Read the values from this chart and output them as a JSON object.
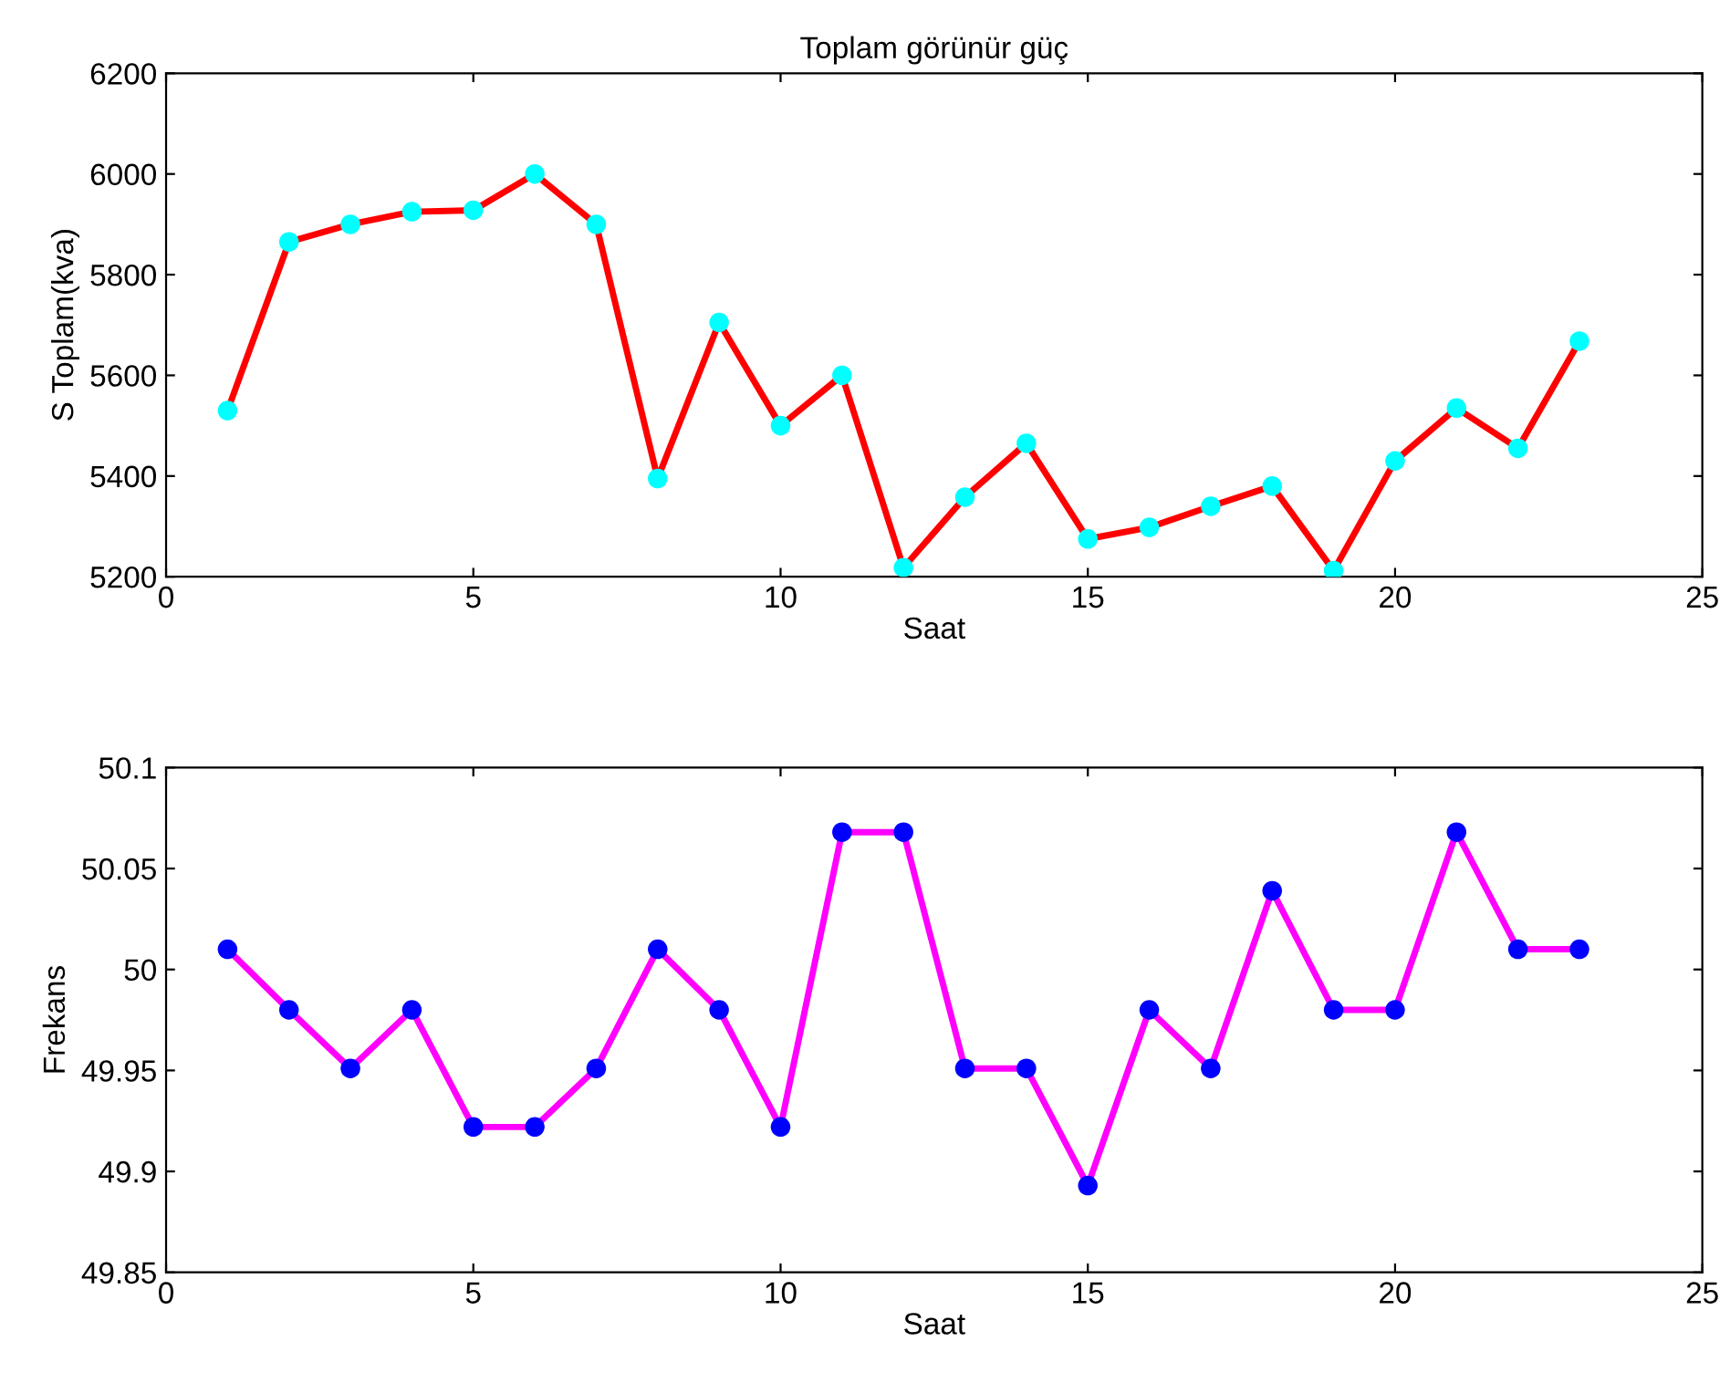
{
  "chart_data": [
    {
      "type": "line",
      "title": "Toplam görünür güç",
      "xlabel": "Saat",
      "ylabel": "S Toplam(kva)",
      "x": [
        1,
        2,
        3,
        4,
        5,
        6,
        7,
        8,
        9,
        10,
        11,
        12,
        13,
        14,
        15,
        16,
        17,
        18,
        19,
        20,
        21,
        22,
        23
      ],
      "series": [
        {
          "color": "#ff0000",
          "colors": [
            "#00ffff",
            "#00ffff",
            "#00ffff",
            "#00ffff",
            "#00ffff",
            "#00ffff",
            "#00ffff",
            "#00ffff",
            "#00ffff",
            "#00ffff",
            "#00ffff",
            "#00ffff",
            "#00ffff",
            "#00ffff",
            "#00ffff",
            "#00ffff",
            "#00ffff",
            "#00ffff",
            "#00ffff",
            "#00ffff",
            "#00ffff",
            "#00ffff",
            "#00ffff"
          ],
          "values": [
            5530,
            5865,
            5900,
            5925,
            5928,
            6000,
            5900,
            5395,
            5705,
            5500,
            5600,
            5218,
            5358,
            5465,
            5275,
            5298,
            5340,
            5380,
            5212,
            5430,
            5535,
            5455,
            5668
          ]
        }
      ],
      "xlim": [
        0,
        25
      ],
      "xticks": [
        0,
        5,
        10,
        15,
        20,
        25
      ],
      "ylim": [
        5200,
        6200
      ],
      "yticks": [
        5200,
        5400,
        5600,
        5800,
        6000,
        6200
      ],
      "grid": false,
      "legend": false,
      "marker": "circle",
      "line_style": "solid"
    },
    {
      "type": "line",
      "xlabel": "Saat",
      "ylabel": "Frekans",
      "x": [
        1,
        2,
        3,
        4,
        5,
        6,
        7,
        8,
        9,
        10,
        11,
        12,
        13,
        14,
        15,
        16,
        17,
        18,
        19,
        20,
        21,
        22,
        23
      ],
      "series": [
        {
          "color": "#ff00ff",
          "colors": [
            "#0000ff",
            "#0000ff",
            "#0000ff",
            "#0000ff",
            "#0000ff",
            "#0000ff",
            "#0000ff",
            "#0000ff",
            "#0000ff",
            "#0000ff",
            "#0000ff",
            "#0000ff",
            "#0000ff",
            "#0000ff",
            "#0000ff",
            "#0000ff",
            "#0000ff",
            "#0000ff",
            "#0000ff",
            "#0000ff",
            "#0000ff",
            "#0000ff",
            "#0000ff"
          ],
          "values": [
            50.01,
            49.98,
            49.951,
            49.98,
            49.922,
            49.922,
            49.951,
            50.01,
            49.98,
            49.922,
            50.068,
            50.068,
            49.951,
            49.951,
            49.893,
            49.98,
            49.951,
            50.039,
            49.98,
            49.98,
            50.068,
            50.01,
            50.01
          ]
        }
      ],
      "xlim": [
        0,
        25
      ],
      "xticks": [
        0,
        5,
        10,
        15,
        20,
        25
      ],
      "ylim": [
        49.85,
        50.1
      ],
      "yticks": [
        49.85,
        49.9,
        49.95,
        50,
        50.05,
        50.1
      ],
      "grid": false,
      "legend": false,
      "marker": "circle",
      "line_style": "solid"
    }
  ]
}
